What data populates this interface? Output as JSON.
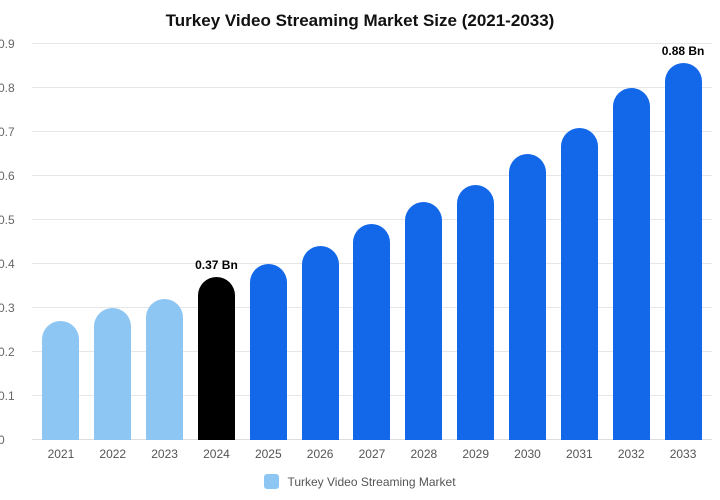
{
  "title": "Turkey Video Streaming Market Size (2021-2033)",
  "legend": {
    "label": "Turkey Video Streaming Market",
    "swatch_color": "#8ec6f3"
  },
  "colors": {
    "light_blue": "#8ec6f3",
    "highlight_black": "#000000",
    "primary_blue": "#1268e8",
    "gridline": "#e6e6e6",
    "axis_text": "#666666"
  },
  "chart_data": {
    "type": "bar",
    "title": "Turkey Video Streaming Market Size (2021-2033)",
    "categories": [
      "2021",
      "2022",
      "2023",
      "2024",
      "2025",
      "2026",
      "2027",
      "2028",
      "2029",
      "2030",
      "2031",
      "2032",
      "2033"
    ],
    "values": [
      0.27,
      0.3,
      0.32,
      0.37,
      0.4,
      0.44,
      0.49,
      0.54,
      0.58,
      0.65,
      0.71,
      0.8,
      0.88
    ],
    "bar_colors": [
      "#8ec6f3",
      "#8ec6f3",
      "#8ec6f3",
      "#000000",
      "#1268e8",
      "#1268e8",
      "#1268e8",
      "#1268e8",
      "#1268e8",
      "#1268e8",
      "#1268e8",
      "#1268e8",
      "#1268e8"
    ],
    "data_labels": [
      {
        "index": 3,
        "text": "0.37 Bn"
      },
      {
        "index": 12,
        "text": "0.88 Bn"
      }
    ],
    "xlabel": "",
    "ylabel": "",
    "ylim": [
      0,
      0.9
    ],
    "ytick_step": 0.1,
    "grid": true,
    "legend_position": "bottom"
  }
}
